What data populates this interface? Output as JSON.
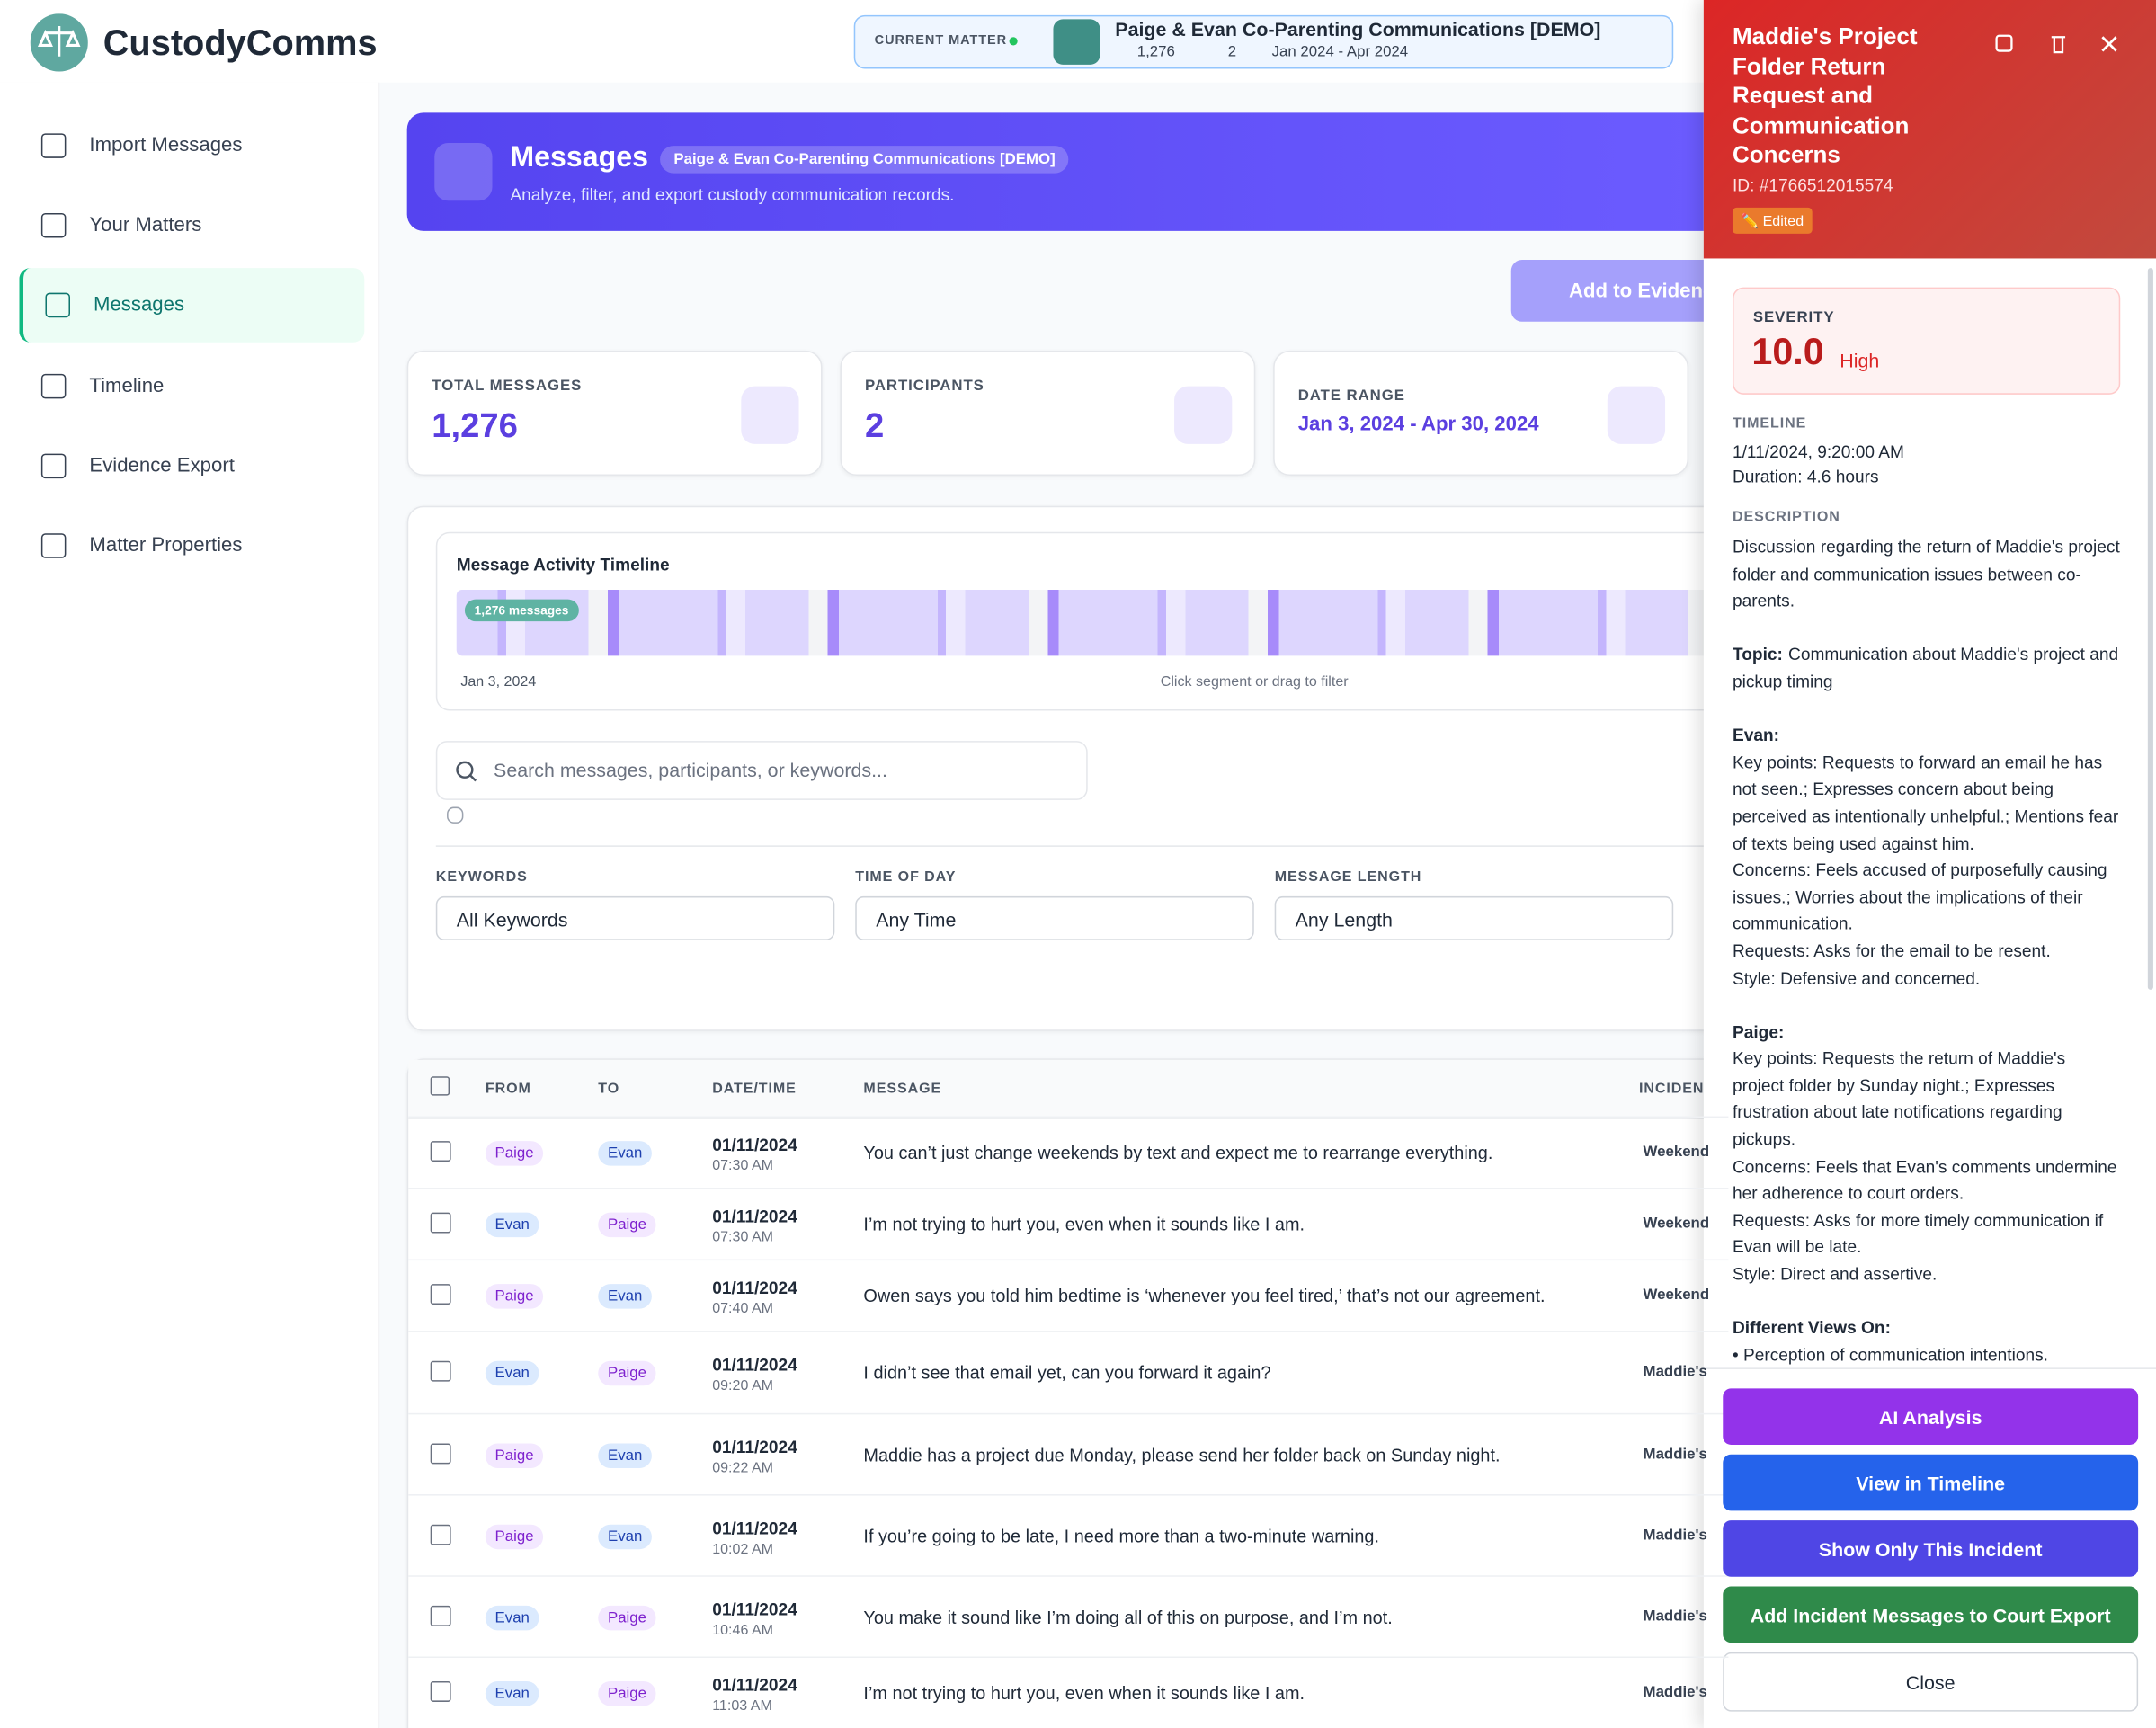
{
  "app": {
    "name": "CustodyComms"
  },
  "matter_bar": {
    "label": "CURRENT MATTER",
    "title": "Paige & Evan Co-Parenting Communications [DEMO]",
    "messages": "1,276",
    "participants": "2",
    "range": "Jan 2024 - Apr 2024"
  },
  "nav": [
    "Import Messages",
    "Your Matters",
    "Messages",
    "Timeline",
    "Evidence Export",
    "Matter Properties"
  ],
  "header": {
    "title": "Messages",
    "badge": "Paige & Evan Co-Parenting Communications [DEMO]",
    "subtitle": "Analyze, filter, and export custody communication records."
  },
  "add_button": "Add to Evidence",
  "stats": [
    {
      "label": "TOTAL MESSAGES",
      "value": "1,276"
    },
    {
      "label": "PARTICIPANTS",
      "value": "2"
    },
    {
      "label": "DATE RANGE",
      "value": "Jan 3, 2024 - Apr 30, 2024"
    }
  ],
  "activity": {
    "title": "Message Activity Timeline",
    "badge": "1,276 messages",
    "start": "Jan 3, 2024",
    "hint": "Click segment or drag to filter"
  },
  "search": {
    "placeholder": "Search messages, participants, or keywords..."
  },
  "filters": [
    {
      "label": "KEYWORDS",
      "value": "All Keywords"
    },
    {
      "label": "TIME OF DAY",
      "value": "Any Time"
    },
    {
      "label": "MESSAGE LENGTH",
      "value": "Any Length"
    }
  ],
  "person_styles": {
    "Paige": {
      "bg": "#f3e8ff",
      "fg": "#7e22ce"
    },
    "Evan": {
      "bg": "#dbeafe",
      "fg": "#1e40af"
    }
  },
  "table": {
    "columns": [
      "FROM",
      "TO",
      "DATE/TIME",
      "MESSAGE",
      "INCIDENT"
    ],
    "rows": [
      {
        "from": "Paige",
        "to": "Evan",
        "date": "01/11/2024",
        "time": "07:30 AM",
        "message": "You can’t just change weekends by text and expect me to rearrange everything.",
        "incident": "Weekend"
      },
      {
        "from": "Evan",
        "to": "Paige",
        "date": "01/11/2024",
        "time": "07:30 AM",
        "message": "I’m not trying to hurt you, even when it sounds like I am.",
        "incident": "Weekend"
      },
      {
        "from": "Paige",
        "to": "Evan",
        "date": "01/11/2024",
        "time": "07:40 AM",
        "message": "Owen says you told him bedtime is ‘whenever you feel tired,’ that’s not our agreement.",
        "incident": "Weekend"
      },
      {
        "from": "Evan",
        "to": "Paige",
        "date": "01/11/2024",
        "time": "09:20 AM",
        "message": "I didn’t see that email yet, can you forward it again?",
        "incident": "Maddie's"
      },
      {
        "from": "Paige",
        "to": "Evan",
        "date": "01/11/2024",
        "time": "09:22 AM",
        "message": "Maddie has a project due Monday, please send her folder back on Sunday night.",
        "incident": "Maddie's"
      },
      {
        "from": "Paige",
        "to": "Evan",
        "date": "01/11/2024",
        "time": "10:02 AM",
        "message": "If you’re going to be late, I need more than a two-minute warning.",
        "incident": "Maddie's"
      },
      {
        "from": "Evan",
        "to": "Paige",
        "date": "01/11/2024",
        "time": "10:46 AM",
        "message": "You make it sound like I’m doing all of this on purpose, and I’m not.",
        "incident": "Maddie's"
      },
      {
        "from": "Evan",
        "to": "Paige",
        "date": "01/11/2024",
        "time": "11:03 AM",
        "message": "I’m not trying to hurt you, even when it sounds like I am.",
        "incident": "Maddie's"
      }
    ]
  },
  "panel": {
    "title": "Maddie's Project Folder Return Request and Communication Concerns",
    "id": "ID: #1766512015574",
    "edited": "✏️ Edited",
    "severity_label": "SEVERITY",
    "severity": "10.0",
    "severity_level": "High",
    "timeline_label": "TIMELINE",
    "time": "1/11/2024, 9:20:00 AM",
    "duration": "Duration: 4.6 hours",
    "description_label": "DESCRIPTION",
    "description": [
      {
        "text": "Discussion regarding the return of Maddie's project folder and communication issues between co-parents."
      },
      {
        "heading": "Topic:",
        "text": "Communication about Maddie's project and pickup timing"
      },
      {
        "heading": "Evan:",
        "lines": [
          "Key points: Requests to forward an email he has not seen.; Expresses concern about being perceived as intentionally unhelpful.; Mentions fear of texts being used against him.",
          "Concerns: Feels accused of purposefully causing issues.; Worries about the implications of their communication.",
          "Requests: Asks for the email to be resent.",
          "Style: Defensive and concerned."
        ]
      },
      {
        "heading": "Paige:",
        "lines": [
          "Key points: Requests the return of Maddie's project folder by Sunday night.; Expresses frustration about late notifications regarding pickups.",
          "Concerns: Feels that Evan's comments undermine her adherence to court orders.",
          "Requests: Asks for more timely communication if Evan will be late.",
          "Style: Direct and assertive."
        ]
      },
      {
        "heading": "Different Views On:",
        "lines": [
          "• Perception of communication intentions."
        ]
      }
    ],
    "buttons": [
      {
        "label": "AI Analysis",
        "color": "#9333ea"
      },
      {
        "label": "View in Timeline",
        "color": "#2563eb"
      },
      {
        "label": "Show Only This Incident",
        "color": "#4f46e5"
      },
      {
        "label": "Add Incident Messages to Court Export",
        "color": "#2f8a4a"
      }
    ],
    "close": "Close"
  }
}
